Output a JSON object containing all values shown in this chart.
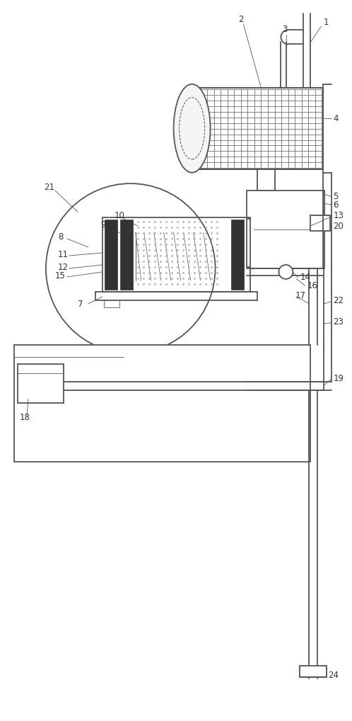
{
  "background": "#ffffff",
  "line_color": "#555555",
  "lw_main": 1.3,
  "lw_thin": 0.6,
  "fig_width": 4.79,
  "fig_height": 10.0
}
